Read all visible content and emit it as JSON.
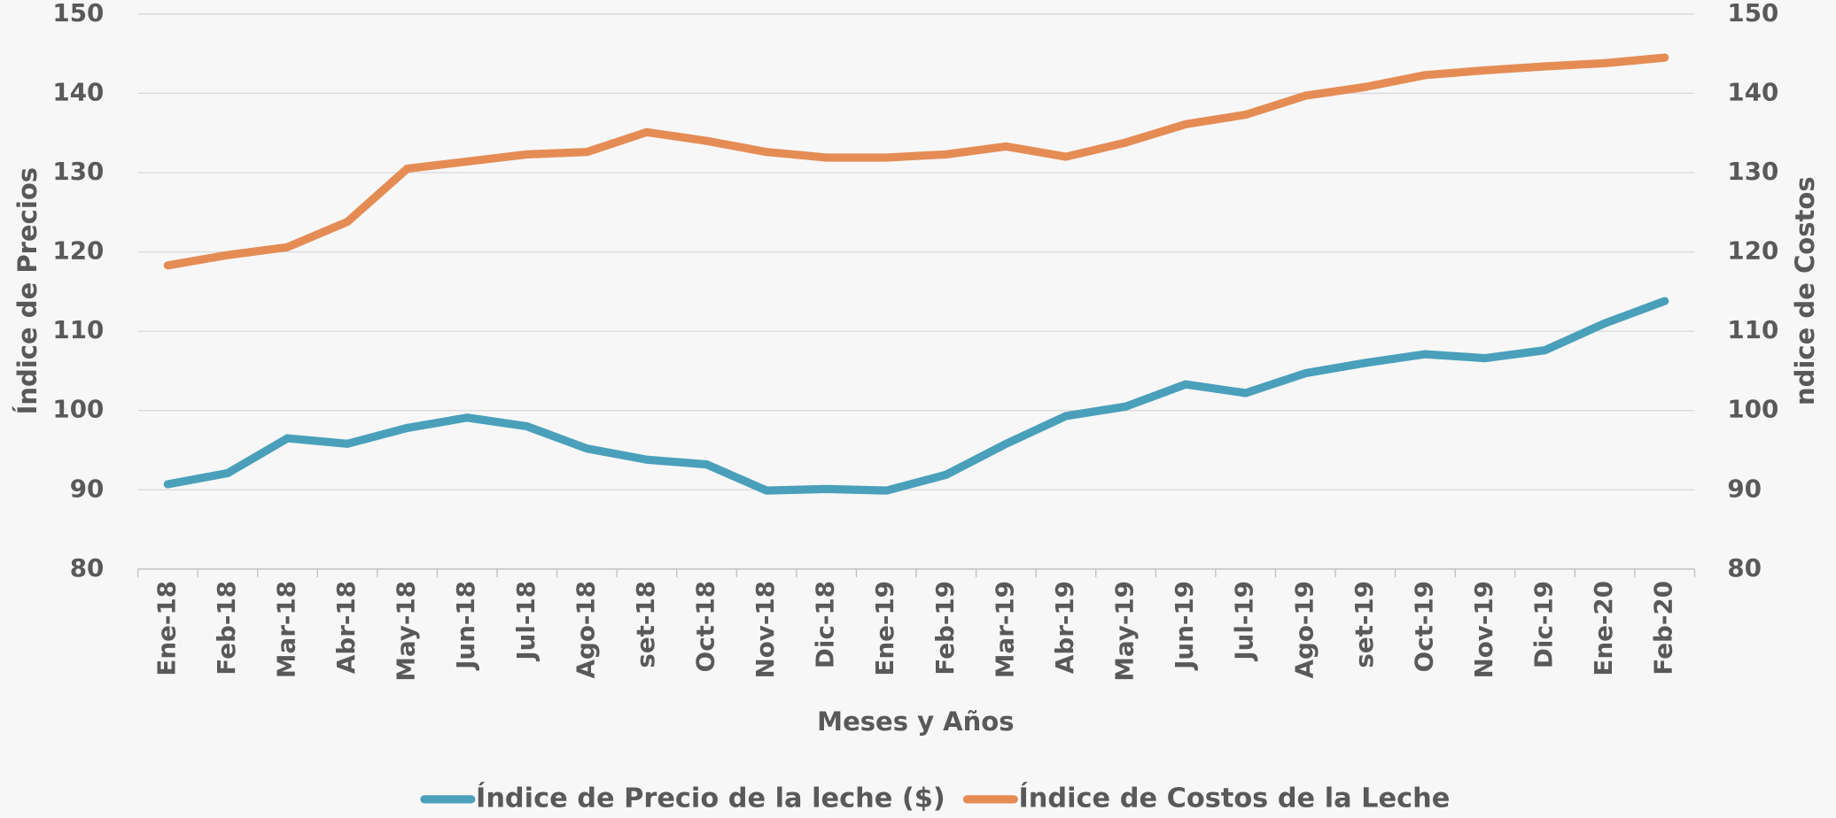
{
  "chart_data": {
    "type": "line",
    "x_label": "Meses y Años",
    "y_label": "Índice de Precios",
    "y2_label": "ndice de Costos",
    "categories": [
      "Ene-18",
      "Feb-18",
      "Mar-18",
      "Abr-18",
      "May-18",
      "Jun-18",
      "Jul-18",
      "Ago-18",
      "set-18",
      "Oct-18",
      "Nov-18",
      "Dic-18",
      "Ene-19",
      "Feb-19",
      "Mar-19",
      "Abr-19",
      "May-19",
      "Jun-19",
      "Jul-19",
      "Ago-19",
      "set-19",
      "Oct-19",
      "Nov-19",
      "Dic-19",
      "Ene-20",
      "Feb-20"
    ],
    "series": [
      {
        "name": "Índice de Precio de la leche ($)",
        "color": "#4aa0bb",
        "values": [
          90.7,
          92.1,
          96.5,
          95.8,
          97.8,
          99.1,
          98.0,
          95.2,
          93.8,
          93.2,
          89.9,
          90.1,
          89.9,
          91.9,
          95.8,
          99.3,
          100.5,
          103.3,
          102.2,
          104.7,
          106.0,
          107.1,
          106.6,
          107.6,
          111.0,
          113.8
        ]
      },
      {
        "name": "Índice de Costos de la Leche",
        "color": "#e58c55",
        "axis": "y2",
        "values": [
          118.3,
          119.6,
          120.6,
          123.8,
          130.5,
          131.4,
          132.3,
          132.6,
          135.1,
          134.0,
          132.6,
          131.9,
          131.9,
          132.3,
          133.3,
          132.0,
          133.8,
          136.1,
          137.3,
          139.7,
          140.8,
          142.3,
          142.9,
          143.4,
          143.8,
          144.5
        ]
      }
    ],
    "ylim": [
      80,
      150
    ],
    "yticks": [
      80,
      90,
      100,
      110,
      120,
      130,
      140,
      150
    ],
    "y2lim": [
      80,
      150
    ],
    "y2ticks": [
      80,
      90,
      100,
      110,
      120,
      130,
      140,
      150
    ],
    "grid": true,
    "legend": "bottom"
  }
}
